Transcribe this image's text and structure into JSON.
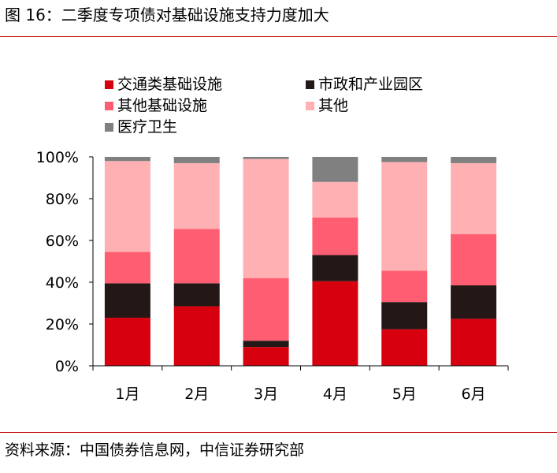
{
  "title": "图 16：二季度专项债对基础设施支持力度加大",
  "source": "资料来源：中国债券信息网，中信证券研究部",
  "chart_data": {
    "type": "bar",
    "stacked": true,
    "categories": [
      "1月",
      "2月",
      "3月",
      "4月",
      "5月",
      "6月"
    ],
    "series": [
      {
        "name": "交通类基础设施",
        "color": "#d7000f",
        "values": [
          23,
          28.5,
          9,
          40.5,
          17.5,
          22.5
        ]
      },
      {
        "name": "市政和产业园区",
        "color": "#231815",
        "values": [
          16.5,
          11,
          3,
          12.5,
          13,
          16
        ]
      },
      {
        "name": "其他基础设施",
        "color": "#ff5e72",
        "values": [
          15,
          26,
          30,
          18,
          15,
          24.5
        ]
      },
      {
        "name": "其他",
        "color": "#ffb0b2",
        "values": [
          43.5,
          31.5,
          57,
          17,
          52,
          34
        ]
      },
      {
        "name": "医疗卫生",
        "color": "#808080",
        "values": [
          2,
          3,
          1,
          12,
          2.5,
          3
        ]
      }
    ],
    "yticks": [
      "0%",
      "20%",
      "40%",
      "60%",
      "80%",
      "100%"
    ],
    "ylim": [
      0,
      100
    ],
    "grid": false,
    "legend_position": "top"
  }
}
